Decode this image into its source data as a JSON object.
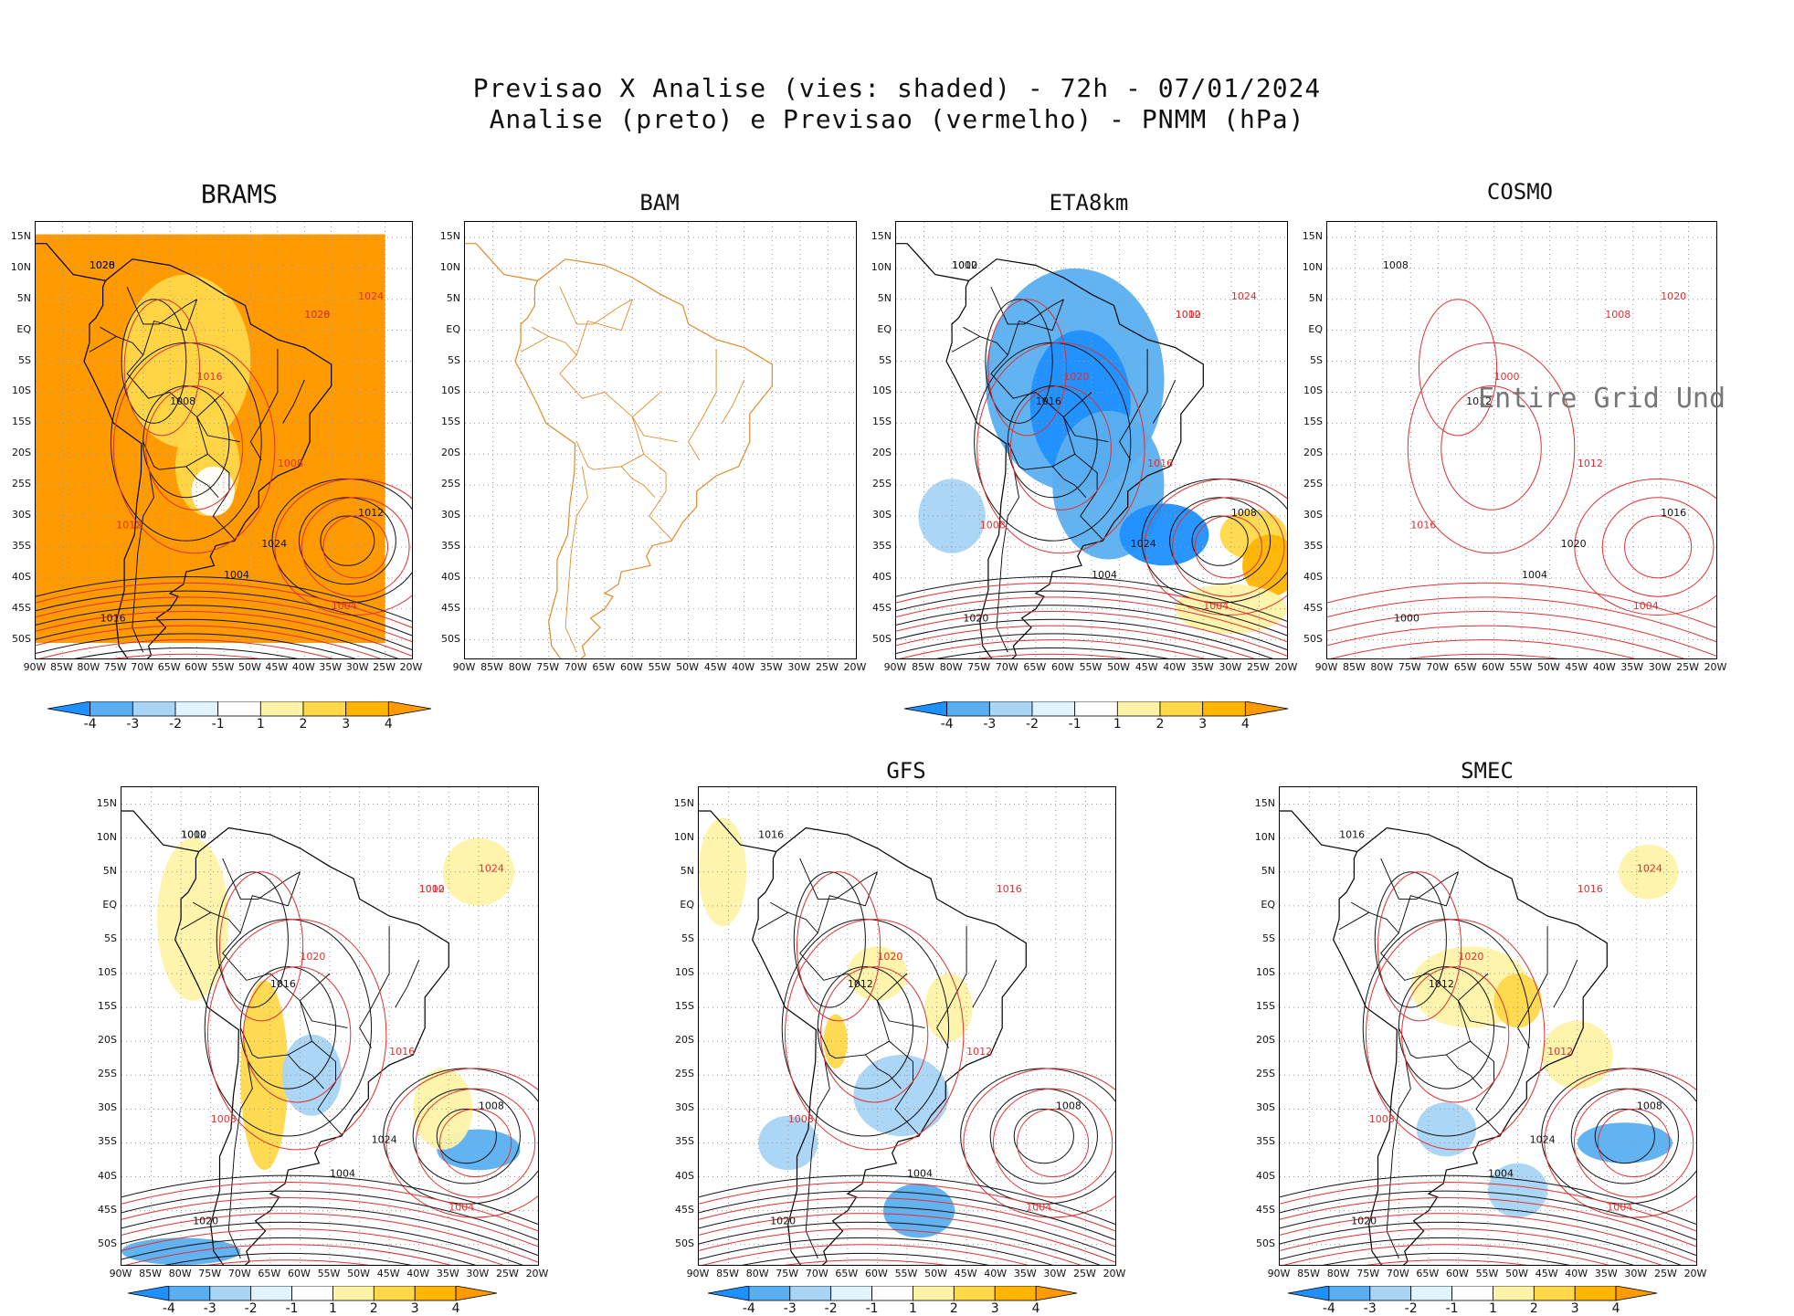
{
  "header": {
    "line1": "Previsao X Analise (vies: shaded) - 72h - 07/01/2024",
    "line2": "Analise (preto) e Previsao (vermelho) - PNMM (hPa)"
  },
  "axes": {
    "lat_labels": [
      "15N",
      "10N",
      "5N",
      "EQ",
      "5S",
      "10S",
      "15S",
      "20S",
      "25S",
      "30S",
      "35S",
      "40S",
      "45S",
      "50S"
    ],
    "lon_labels": [
      "90W",
      "85W",
      "80W",
      "75W",
      "70W",
      "65W",
      "60W",
      "55W",
      "50W",
      "45W",
      "40W",
      "35W",
      "30W",
      "25W",
      "20W"
    ]
  },
  "colorbar": {
    "labels": [
      "-4",
      "-3",
      "-2",
      "-1",
      "1",
      "2",
      "3",
      "4"
    ],
    "colors": [
      "#1e90ff",
      "#5aaff0",
      "#a8d4f5",
      "#e0f4ff",
      "#ffffff",
      "#fff3a8",
      "#ffd84a",
      "#ffb400",
      "#ff9a00"
    ]
  },
  "no_data_text": "Entire Grid Und",
  "chart_data": [
    {
      "type": "heatmap",
      "model": "BRAMS",
      "title": "BRAMS",
      "bias_fill": "mostly positive (orange)",
      "contour_labels": [
        "1020",
        "1008",
        "1012",
        "1004",
        "1016",
        "1024",
        "1028"
      ],
      "has_colorbar": true
    },
    {
      "type": "heatmap",
      "model": "BAM",
      "title": "BAM",
      "bias_fill": "none",
      "contour_labels": [],
      "has_colorbar": false
    },
    {
      "type": "heatmap",
      "model": "ETA8km",
      "title": "ETA8km",
      "bias_fill": "mostly negative (blue) over continent",
      "contour_labels": [
        "1012",
        "1016",
        "1008",
        "1004",
        "1020",
        "1024",
        "1000"
      ],
      "has_colorbar": true
    },
    {
      "type": "heatmap",
      "model": "COSMO",
      "title": "COSMO",
      "bias_fill": "undefined",
      "contour_labels": [
        "1008",
        "1012",
        "1016",
        "1004",
        "1000",
        "1020"
      ],
      "has_colorbar": false
    },
    {
      "type": "heatmap",
      "model": "",
      "title": "",
      "bias_fill": "mixed",
      "contour_labels": [
        "1012",
        "1016",
        "1008",
        "1004",
        "1020",
        "1024",
        "1000"
      ],
      "has_colorbar": true
    },
    {
      "type": "heatmap",
      "model": "GFS",
      "title": "GFS",
      "bias_fill": "mixed",
      "contour_labels": [
        "1016",
        "1012",
        "1008",
        "1004",
        "1020"
      ],
      "has_colorbar": true
    },
    {
      "type": "heatmap",
      "model": "SMEC",
      "title": "SMEC",
      "bias_fill": "mixed",
      "contour_labels": [
        "1016",
        "1012",
        "1008",
        "1004",
        "1020",
        "1024"
      ],
      "has_colorbar": true
    }
  ]
}
